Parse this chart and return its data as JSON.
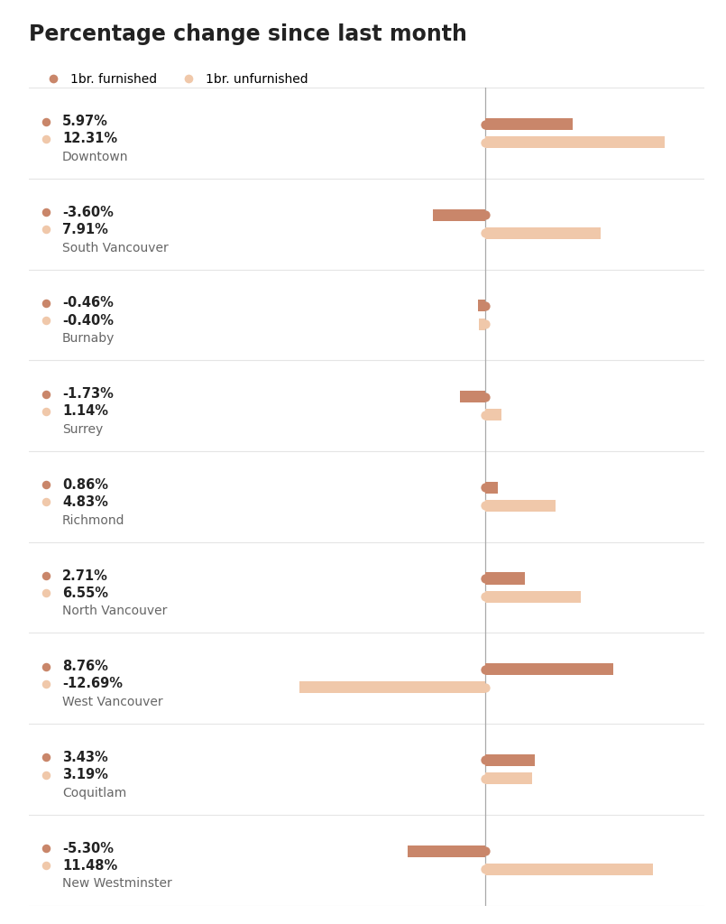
{
  "title": "Percentage change since last month",
  "legend": [
    "1br. furnished",
    "1br. unfurnished"
  ],
  "furnished_color": "#c9866a",
  "unfurnished_color": "#f0c8aa",
  "background_color": "#ffffff",
  "grid_color": "#e5e5e5",
  "zero_line_color": "#aaaaaa",
  "text_color_dark": "#222222",
  "text_color_light": "#666666",
  "categories": [
    "Downtown",
    "South Vancouver",
    "Burnaby",
    "Surrey",
    "Richmond",
    "North Vancouver",
    "West Vancouver",
    "Coquitlam",
    "New Westminster"
  ],
  "furnished_values": [
    5.97,
    -3.6,
    -0.46,
    -1.73,
    0.86,
    2.71,
    8.76,
    3.43,
    -5.3
  ],
  "unfurnished_values": [
    12.31,
    7.91,
    -0.4,
    1.14,
    4.83,
    6.55,
    -12.69,
    3.19,
    11.48
  ],
  "xlim": [
    -15,
    15
  ],
  "bar_height": 0.13,
  "dot_size": 55,
  "title_fontsize": 17,
  "value_fontsize": 10.5,
  "category_fontsize": 10,
  "legend_fontsize": 10
}
